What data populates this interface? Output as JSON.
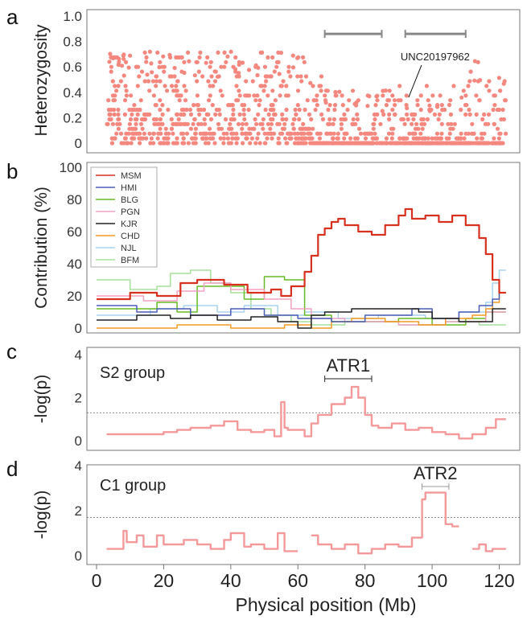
{
  "panels": {
    "a": "a",
    "b": "b",
    "c": "c",
    "d": "d"
  },
  "colors": {
    "accent": "#f08080",
    "dot": "#f4877e"
  },
  "chart_data": [
    {
      "type": "scatter",
      "panel": "a",
      "ylabel": "Heterozygosity",
      "ylim": [
        0,
        1
      ],
      "yticks": [
        "0",
        "0.2",
        "0.4",
        "0.6",
        "0.8",
        "1.0"
      ],
      "xlim": [
        0,
        123
      ],
      "annotation": {
        "label": "UNC20197962",
        "x": 93,
        "y": 0.36
      },
      "brackets": [
        {
          "x0": 68,
          "x1": 85,
          "y": 0.86
        },
        {
          "x0": 92,
          "x1": 110,
          "y": 0.86
        }
      ],
      "series": [
        {
          "name": "Heterozygosity",
          "color": "#f4877e"
        }
      ]
    },
    {
      "type": "line",
      "panel": "b",
      "ylabel": "Contribution (%)",
      "ylim": [
        0,
        100
      ],
      "yticks": [
        "0",
        "20",
        "40",
        "60",
        "80",
        "100"
      ],
      "xlim": [
        0,
        123
      ],
      "legend": "top-left",
      "series": [
        {
          "name": "MSM",
          "color": "#d7301f",
          "x": [
            0,
            3,
            10,
            10,
            18,
            18,
            25,
            25,
            30,
            30,
            38,
            38,
            45,
            45,
            52,
            52,
            55,
            55,
            58,
            58,
            62,
            62,
            64,
            64,
            66,
            66,
            68,
            68,
            70,
            70,
            72,
            72,
            74,
            74,
            78,
            78,
            82,
            82,
            86,
            86,
            90,
            90,
            92,
            92,
            94,
            94,
            98,
            98,
            102,
            102,
            106,
            106,
            110,
            110,
            114,
            114,
            116,
            116,
            118,
            118,
            120,
            120,
            122
          ],
          "values": [
            18,
            18,
            18,
            22,
            22,
            20,
            20,
            28,
            28,
            30,
            30,
            27,
            27,
            22,
            22,
            24,
            24,
            20,
            20,
            26,
            26,
            35,
            35,
            45,
            45,
            58,
            58,
            62,
            62,
            66,
            66,
            68,
            68,
            64,
            64,
            60,
            60,
            58,
            58,
            64,
            64,
            70,
            70,
            74,
            74,
            68,
            68,
            70,
            70,
            66,
            66,
            70,
            70,
            64,
            64,
            56,
            56,
            46,
            46,
            30,
            30,
            22,
            22
          ]
        },
        {
          "name": "HMI",
          "color": "#4a5fb5",
          "x": [
            0,
            5,
            12,
            12,
            18,
            18,
            28,
            28,
            40,
            40,
            50,
            50,
            60,
            60,
            70,
            70,
            80,
            80,
            94,
            94,
            100,
            100,
            108,
            108,
            114,
            114,
            118,
            118,
            120,
            120,
            122
          ],
          "values": [
            14,
            14,
            14,
            10,
            10,
            12,
            12,
            8,
            8,
            12,
            12,
            8,
            8,
            6,
            6,
            4,
            4,
            8,
            8,
            12,
            12,
            6,
            6,
            10,
            10,
            14,
            14,
            18,
            18,
            22,
            22
          ]
        },
        {
          "name": "BLG",
          "color": "#66bb22",
          "x": [
            0,
            5,
            18,
            18,
            24,
            24,
            30,
            30,
            44,
            44,
            50,
            50,
            56,
            56,
            62,
            62,
            70,
            70,
            90,
            90,
            100,
            100,
            110,
            110,
            116,
            116,
            122
          ],
          "values": [
            12,
            12,
            12,
            16,
            16,
            10,
            10,
            26,
            26,
            18,
            18,
            32,
            32,
            30,
            30,
            8,
            8,
            4,
            4,
            6,
            6,
            2,
            2,
            6,
            6,
            10,
            10
          ]
        },
        {
          "name": "PGN",
          "color": "#f0a0c0",
          "x": [
            0,
            5,
            14,
            14,
            24,
            24,
            32,
            32,
            40,
            40,
            50,
            50,
            58,
            58,
            64,
            64,
            74,
            74,
            90,
            90,
            104,
            104,
            116,
            116,
            122
          ],
          "values": [
            20,
            20,
            20,
            17,
            17,
            23,
            23,
            28,
            28,
            24,
            24,
            18,
            18,
            12,
            12,
            6,
            6,
            4,
            4,
            2,
            2,
            4,
            4,
            10,
            10
          ]
        },
        {
          "name": "KJR",
          "color": "#222222",
          "x": [
            0,
            5,
            12,
            12,
            22,
            22,
            28,
            28,
            36,
            36,
            46,
            46,
            54,
            54,
            60,
            60,
            64,
            64,
            68,
            68,
            76,
            76,
            96,
            96,
            100,
            100,
            108,
            108,
            118,
            118,
            122
          ],
          "values": [
            5,
            5,
            5,
            8,
            8,
            6,
            6,
            8,
            8,
            5,
            5,
            7,
            7,
            4,
            4,
            0,
            0,
            8,
            8,
            10,
            10,
            12,
            12,
            10,
            10,
            6,
            6,
            4,
            4,
            12,
            12
          ]
        },
        {
          "name": "CHD",
          "color": "#f39a22",
          "x": [
            0,
            5,
            24,
            24,
            40,
            40,
            56,
            56,
            64,
            64,
            70,
            70,
            76,
            76,
            86,
            86,
            96,
            96,
            104,
            104,
            112,
            112,
            116,
            116,
            118,
            118,
            120,
            120,
            122
          ],
          "values": [
            0,
            0,
            0,
            2,
            2,
            0,
            0,
            2,
            2,
            0,
            0,
            4,
            4,
            6,
            6,
            4,
            4,
            2,
            2,
            6,
            6,
            8,
            8,
            12,
            12,
            16,
            16,
            22,
            22
          ]
        },
        {
          "name": "NJL",
          "color": "#a8d4ef",
          "x": [
            0,
            5,
            16,
            16,
            26,
            26,
            36,
            36,
            44,
            44,
            54,
            54,
            62,
            62,
            72,
            72,
            84,
            84,
            98,
            98,
            108,
            108,
            116,
            116,
            118,
            118,
            120,
            120,
            122
          ],
          "values": [
            8,
            8,
            8,
            12,
            12,
            14,
            14,
            10,
            10,
            14,
            14,
            8,
            8,
            10,
            10,
            6,
            6,
            8,
            8,
            6,
            6,
            10,
            10,
            16,
            16,
            28,
            28,
            36,
            36
          ]
        },
        {
          "name": "BFM",
          "color": "#a6e09a",
          "x": [
            0,
            5,
            10,
            10,
            18,
            18,
            22,
            22,
            28,
            28,
            34,
            34,
            40,
            40,
            46,
            46,
            52,
            52,
            58,
            58,
            64,
            64,
            74,
            74,
            90,
            90,
            104,
            104,
            114,
            114,
            122
          ],
          "values": [
            30,
            30,
            30,
            24,
            24,
            26,
            26,
            34,
            34,
            36,
            36,
            28,
            28,
            22,
            22,
            12,
            12,
            8,
            8,
            4,
            4,
            2,
            2,
            4,
            4,
            2,
            2,
            4,
            4,
            2,
            2
          ]
        }
      ]
    },
    {
      "type": "line",
      "panel": "c",
      "label": "S2 group",
      "ylabel": "-log(p)",
      "ylim": [
        0,
        4
      ],
      "yticks": [
        "0",
        "2",
        "4"
      ],
      "xlim": [
        0,
        123
      ],
      "threshold": 1.3,
      "region": {
        "label": "ATR1",
        "x0": 68,
        "x1": 82
      },
      "series": [
        {
          "name": "-log(p)",
          "color": "#f4999a",
          "x": [
            3,
            8,
            16,
            20,
            20,
            24,
            24,
            28,
            28,
            34,
            34,
            38,
            38,
            42,
            42,
            46,
            46,
            50,
            50,
            53,
            53,
            55,
            55,
            56,
            56,
            57,
            57,
            60,
            60,
            62,
            62,
            64,
            64,
            66,
            66,
            70,
            70,
            74,
            74,
            76,
            76,
            78,
            78,
            80,
            80,
            82,
            82,
            84,
            84,
            88,
            88,
            92,
            92,
            96,
            96,
            100,
            100,
            104,
            104,
            108,
            108,
            112,
            112,
            116,
            116,
            119,
            119,
            122
          ],
          "values": [
            0.3,
            0.3,
            0.3,
            0.3,
            0.4,
            0.4,
            0.5,
            0.5,
            0.6,
            0.6,
            0.7,
            0.7,
            0.9,
            0.9,
            0.5,
            0.5,
            0.4,
            0.4,
            0.5,
            0.5,
            0.2,
            0.2,
            1.8,
            1.8,
            0.6,
            0.6,
            0.5,
            0.5,
            0.5,
            0.5,
            0.2,
            0.2,
            0.8,
            0.8,
            1.2,
            1.2,
            1.7,
            1.7,
            2.0,
            2.0,
            2.5,
            2.5,
            2.0,
            2.0,
            1.2,
            1.2,
            0.7,
            0.7,
            0.6,
            0.6,
            0.8,
            0.8,
            0.5,
            0.5,
            0.6,
            0.6,
            0.4,
            0.4,
            0.3,
            0.3,
            0.1,
            0.1,
            0.3,
            0.3,
            0.6,
            0.6,
            1.0,
            1.0
          ]
        }
      ]
    },
    {
      "type": "line",
      "panel": "d",
      "label": "C1 group",
      "ylabel": "-log(p)",
      "ylim": [
        0,
        4
      ],
      "yticks": [
        "0",
        "2",
        "4"
      ],
      "xlim": [
        0,
        123
      ],
      "threshold": 1.7,
      "region": {
        "label": "ATR2",
        "x0": 97,
        "x1": 105
      },
      "series": [
        {
          "name": "-log(p)",
          "color": "#f4999a",
          "segments": [
            {
              "x": [
                3,
                8,
                8,
                9,
                9,
                12,
                12,
                14,
                14,
                18,
                18,
                20,
                20,
                26,
                26,
                30,
                30,
                34,
                34,
                38,
                38,
                40,
                40,
                44,
                44,
                46,
                46,
                50,
                50,
                54,
                54,
                56,
                56,
                60
              ],
              "values": [
                0.3,
                0.3,
                1.1,
                1.1,
                0.6,
                0.6,
                0.9,
                0.9,
                0.4,
                0.4,
                0.9,
                0.9,
                0.5,
                0.5,
                0.7,
                0.7,
                0.5,
                0.5,
                0.3,
                0.3,
                0.7,
                0.7,
                1.0,
                1.0,
                0.4,
                0.4,
                0.5,
                0.5,
                0.3,
                0.3,
                1.0,
                1.0,
                0.2,
                0.2
              ]
            },
            {
              "x": [
                64,
                66,
                66,
                70,
                70,
                74,
                74,
                78,
                78,
                82,
                82,
                86,
                86,
                90,
                90,
                94,
                94,
                97,
                97,
                98,
                98,
                104,
                104,
                106,
                106,
                108
              ],
              "values": [
                0.9,
                0.9,
                0.5,
                0.5,
                0.3,
                0.3,
                0.5,
                0.5,
                0.1,
                0.1,
                0.3,
                0.3,
                0.5,
                0.5,
                0.4,
                0.4,
                0.8,
                0.8,
                2.5,
                2.5,
                2.8,
                2.8,
                1.4,
                1.4,
                1.3,
                1.3
              ]
            },
            {
              "x": [
                112,
                114,
                114,
                116,
                116,
                118,
                118,
                122
              ],
              "values": [
                0.3,
                0.3,
                0.5,
                0.5,
                0.2,
                0.2,
                0.3,
                0.3
              ]
            }
          ]
        }
      ]
    }
  ],
  "x_axis": {
    "label": "Physical position (Mb)",
    "ticks": [
      0,
      20,
      40,
      60,
      80,
      100,
      120
    ]
  }
}
